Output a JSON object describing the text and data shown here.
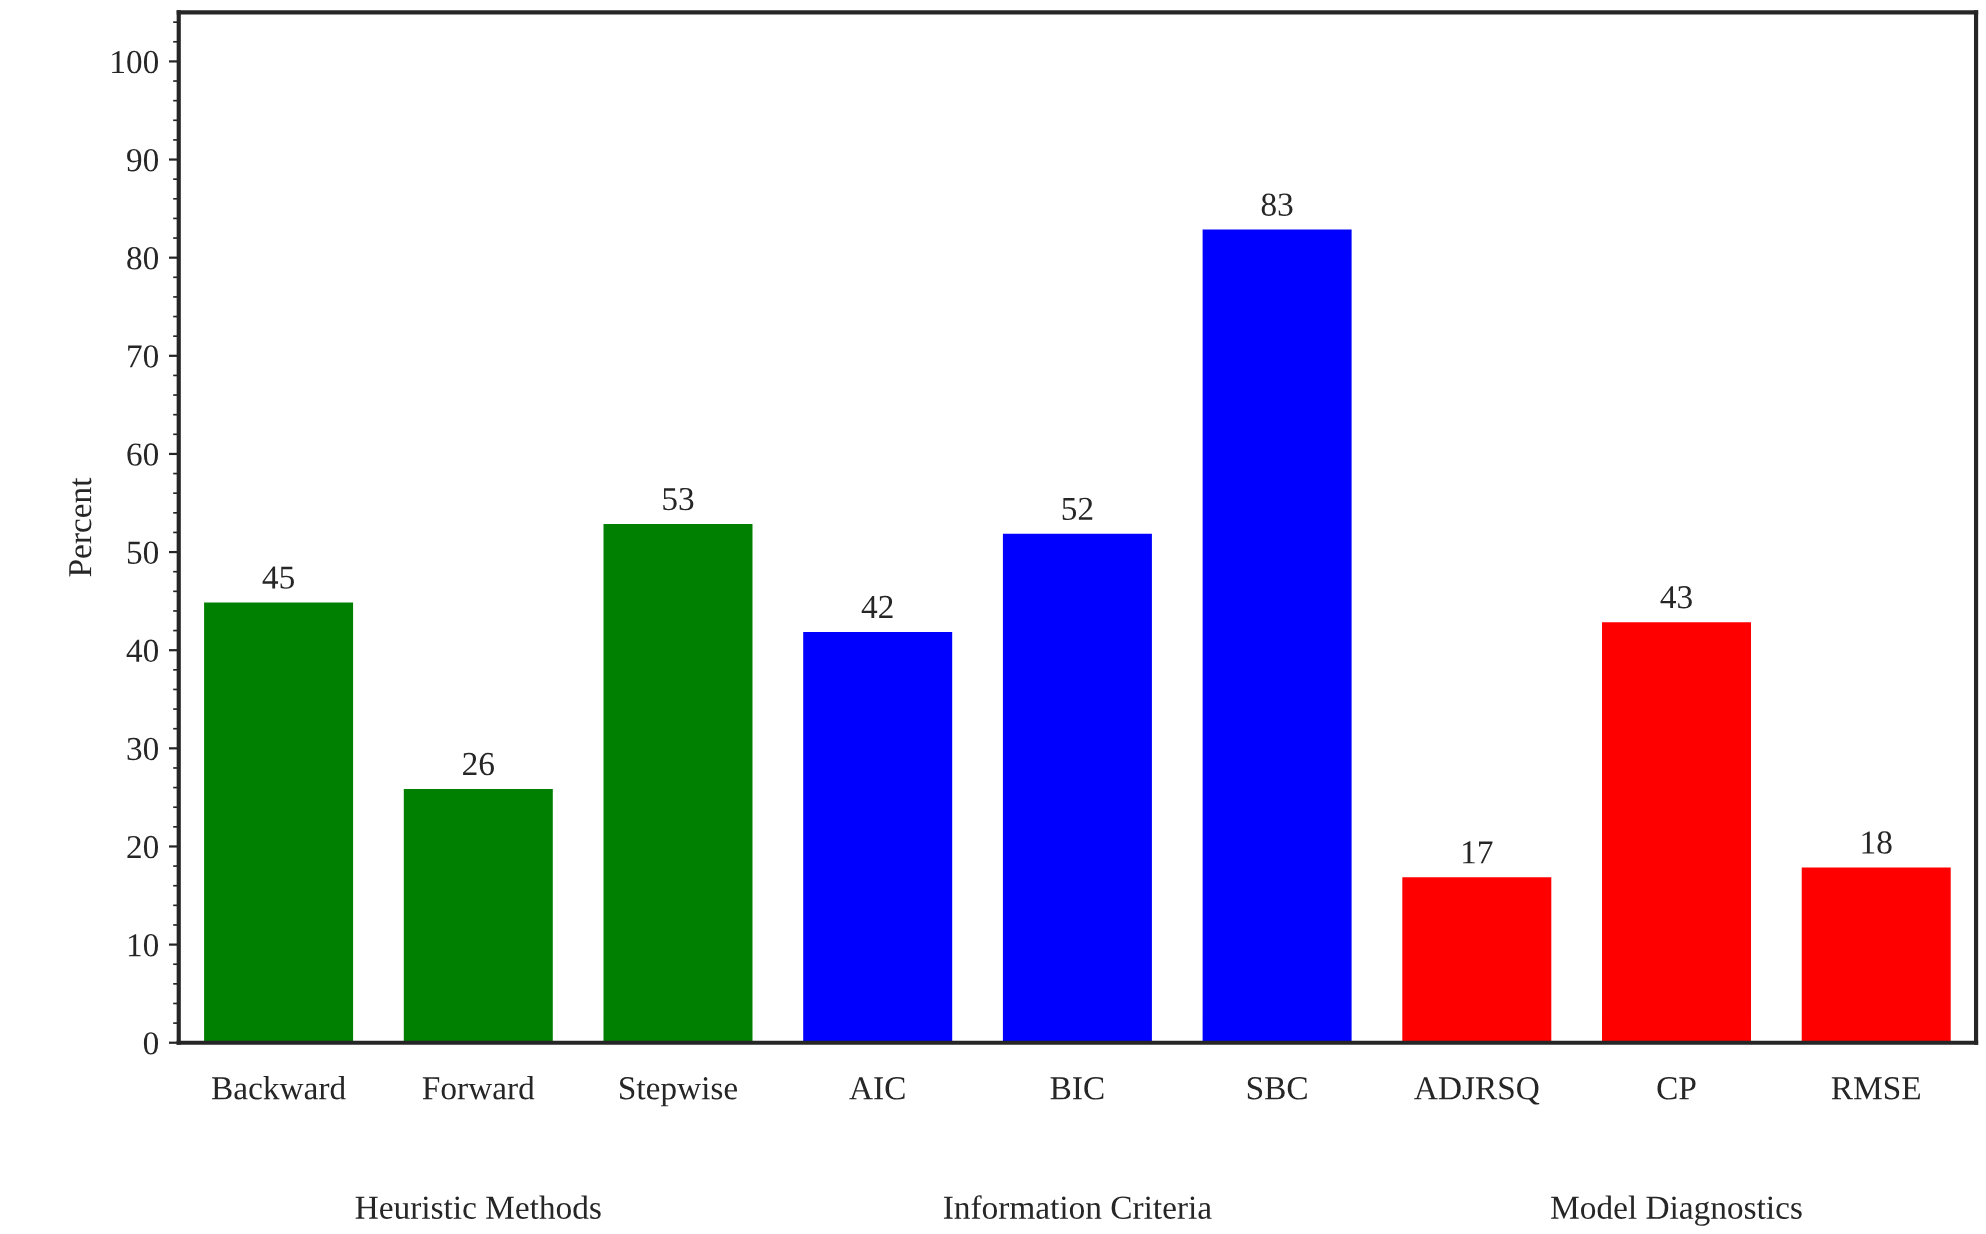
{
  "chart_data": {
    "type": "bar",
    "ylabel": "Percent",
    "categories": [
      "Backward",
      "Forward",
      "Stepwise",
      "AIC",
      "BIC",
      "SBC",
      "ADJRSQ",
      "CP",
      "RMSE"
    ],
    "values": [
      45,
      26,
      53,
      42,
      52,
      83,
      17,
      43,
      18
    ],
    "colors": [
      "#008000",
      "#008000",
      "#008000",
      "#0000ff",
      "#0000ff",
      "#0000ff",
      "#ff0000",
      "#ff0000",
      "#ff0000"
    ],
    "ylim": [
      0,
      105
    ],
    "yticks": [
      0,
      10,
      20,
      30,
      40,
      50,
      60,
      70,
      80,
      90,
      100
    ],
    "data_labels": true,
    "grid": false,
    "legend": false,
    "annotations": [
      "Heuristic Methods",
      "Information Criteria",
      "Model Diagnostics"
    ]
  }
}
